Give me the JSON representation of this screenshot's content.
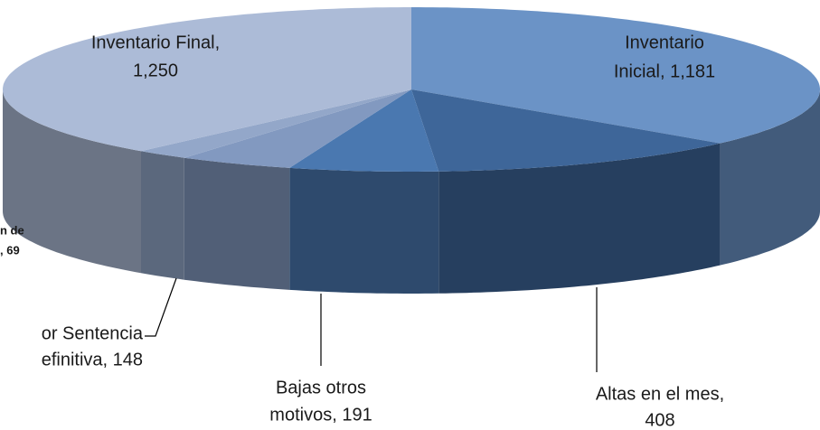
{
  "chart_data": {
    "type": "pie3d",
    "values": [
      1181,
      408,
      191,
      148,
      69,
      1250
    ],
    "labels": [
      [
        "Inventario",
        "Inicial, 1,181"
      ],
      [
        "Altas en el mes,",
        "408"
      ],
      [
        "Bajas otros",
        "motivos, 191"
      ],
      [
        "or Sentencia",
        "efinitiva, 148"
      ],
      [
        "n de",
        ", 69"
      ],
      [
        "Inventario Final,",
        "1,250"
      ]
    ],
    "colors": [
      "#6b93c6",
      "#3e6699",
      "#4a78b0",
      "#8299c0",
      "#93a7c9",
      "#acbbd7"
    ],
    "start_angle": 0,
    "direction": "clockwise"
  }
}
